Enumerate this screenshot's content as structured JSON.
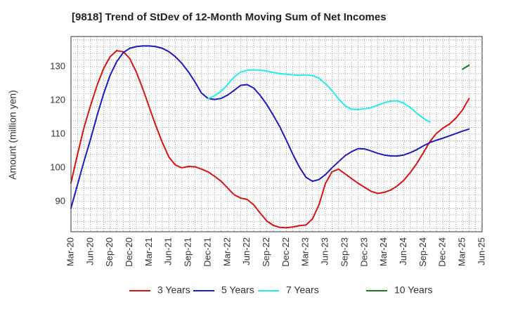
{
  "chart_data": {
    "type": "line",
    "title": "[9818]  Trend of StDev of 12-Month Moving Sum of Net Incomes",
    "xlabel": "",
    "ylabel": "Amount (million yen)",
    "x_ticks": [
      "Mar-20",
      "Jun-20",
      "Sep-20",
      "Dec-20",
      "Mar-21",
      "Jun-21",
      "Sep-21",
      "Dec-21",
      "Mar-22",
      "Jun-22",
      "Sep-22",
      "Dec-22",
      "Mar-23",
      "Jun-23",
      "Sep-23",
      "Dec-23",
      "Mar-24",
      "Jun-24",
      "Sep-24",
      "Dec-24",
      "Mar-25",
      "Jun-25"
    ],
    "y_ticks": [
      90,
      100,
      110,
      120,
      130
    ],
    "ylim": [
      81,
      139
    ],
    "grid": true,
    "legend_position": "bottom",
    "series": [
      {
        "name": "3 Years",
        "color": "#dd1111",
        "start_index": 0,
        "values": [
          95.5,
          104,
          112,
          118.5,
          124.5,
          129.5,
          133,
          134.8,
          134.5,
          132.5,
          128.5,
          123.5,
          118,
          112.5,
          107.5,
          103.2,
          100.8,
          100,
          100.4,
          100.3,
          99.6,
          98.8,
          97.5,
          96,
          94,
          92,
          91,
          90.6,
          89,
          86.5,
          84.2,
          82.9,
          82.3,
          82.2,
          82.4,
          82.8,
          83,
          84.8,
          89,
          95.4,
          98.8,
          99.6,
          98.2,
          96.8,
          95.4,
          94.2,
          93,
          92.4,
          92.7,
          93.4,
          94.6,
          96.3,
          98.6,
          101.3,
          104.5,
          107.8,
          110.2,
          111.8,
          113,
          114.8,
          117.2,
          120.6
        ]
      },
      {
        "name": "5 Years",
        "color": "#1a1acc",
        "start_index": 0,
        "values": [
          88,
          95,
          102,
          108.5,
          115.5,
          122,
          127.5,
          131.5,
          134.2,
          135.5,
          136,
          136.2,
          136.2,
          136,
          135.5,
          134.5,
          133,
          131,
          128.5,
          125.5,
          122.2,
          120.6,
          120.3,
          120.6,
          121.6,
          123,
          124.5,
          124.7,
          123.7,
          121.5,
          118.8,
          115.6,
          112.2,
          108.2,
          104,
          100.2,
          97.2,
          96,
          96.5,
          98,
          100,
          101.8,
          103.6,
          104.8,
          105.7,
          105.6,
          105,
          104.3,
          103.8,
          103.5,
          103.5,
          103.8,
          104.5,
          105.4,
          106.5,
          107.5,
          108.2,
          108.8,
          109.5,
          110.2,
          110.9,
          111.5
        ]
      },
      {
        "name": "7 Years",
        "color": "#22eeee",
        "start_index": 21,
        "values": [
          120.5,
          121.4,
          122.7,
          124.7,
          127,
          128.4,
          129,
          129.1,
          129,
          128.7,
          128.3,
          128,
          127.8,
          127.6,
          127.5,
          127.6,
          127.4,
          126.6,
          125,
          122.9,
          120.5,
          118.4,
          117.4,
          117.3,
          117.5,
          117.9,
          118.6,
          119.3,
          119.8,
          119.9,
          119.2,
          117.9,
          116.2,
          114.7,
          113.6
        ]
      },
      {
        "name": "10 Years",
        "color": "#227722",
        "start_index": 60,
        "values": [
          129.3,
          130.5
        ]
      }
    ]
  }
}
